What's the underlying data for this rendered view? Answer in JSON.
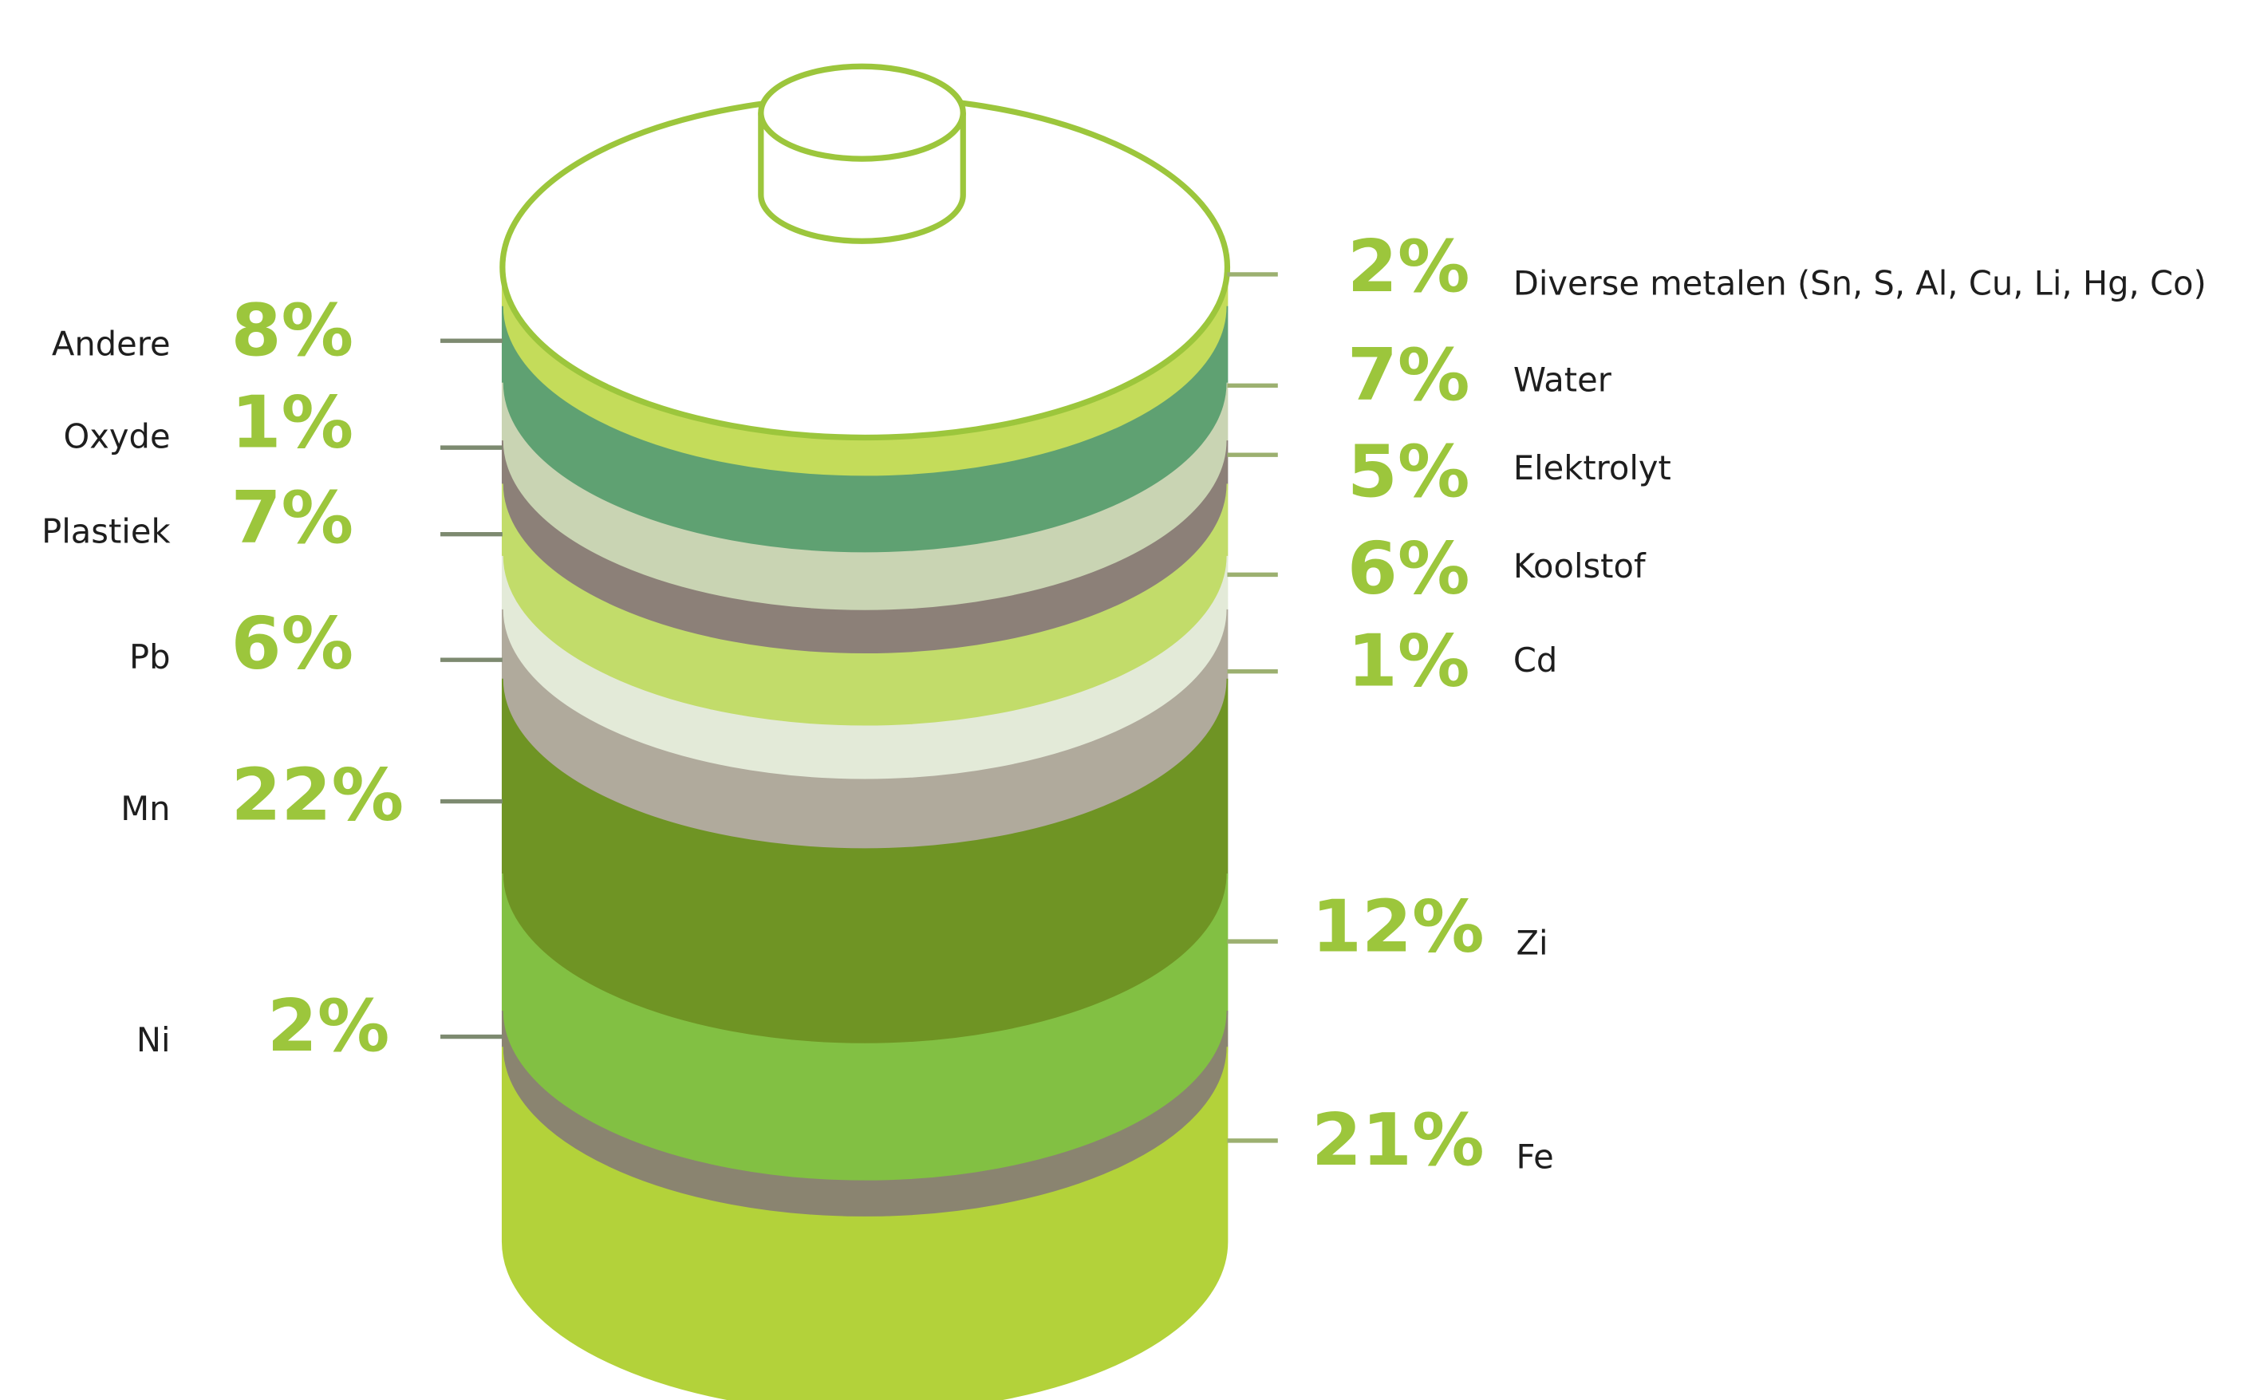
{
  "left": [
    {
      "label": "Andere",
      "share": "8%"
    },
    {
      "label": "Oxyde",
      "share": "1%"
    },
    {
      "label": "Plastiek",
      "share": "7%"
    },
    {
      "label": "Pb",
      "share": "6%"
    },
    {
      "label": "Mn",
      "share": "22%"
    },
    {
      "label": "Ni",
      "share": "2%"
    }
  ],
  "right": [
    {
      "label": "Diverse metalen (Sn, S, Al, Cu, Li, Hg, Co)",
      "share": "2%"
    },
    {
      "label": "Water",
      "share": "7%"
    },
    {
      "label": "Elektrolyt",
      "share": "5%"
    },
    {
      "label": "Koolstof",
      "share": "6%"
    },
    {
      "label": "Cd",
      "share": "1%"
    },
    {
      "label": "Zi",
      "share": "12%"
    },
    {
      "label": "Fe",
      "share": "21%"
    }
  ]
}
